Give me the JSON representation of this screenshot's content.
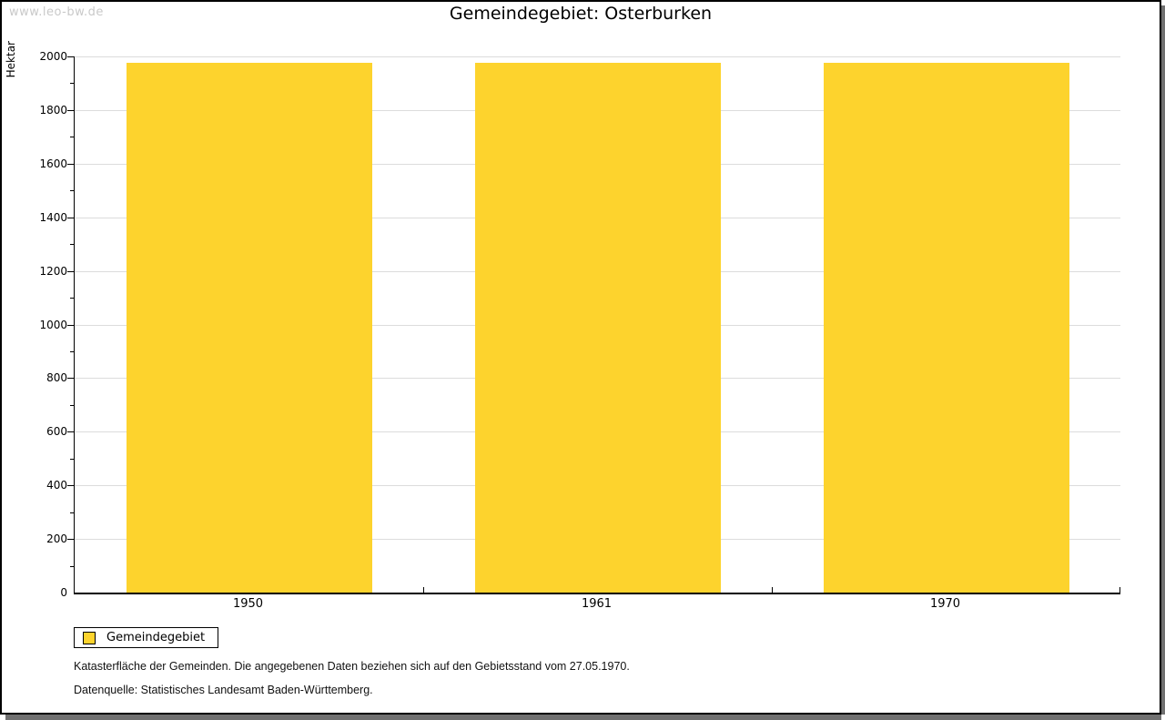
{
  "watermark": "www.leo-bw.de",
  "chart_data": {
    "type": "bar",
    "title": "Gemeindegebiet: Osterburken",
    "categories": [
      "1950",
      "1961",
      "1970"
    ],
    "series": [
      {
        "name": "Gemeindegebiet",
        "values": [
          1975,
          1975,
          1975
        ]
      }
    ],
    "xlabel": "",
    "ylabel": "Hektar",
    "ylim": [
      0,
      2000
    ],
    "yticks": [
      0,
      200,
      400,
      600,
      800,
      1000,
      1200,
      1400,
      1600,
      1800,
      2000
    ],
    "minor_tick_step": 100,
    "grid": true,
    "legend_position": "bottom-left",
    "unit": "Hektar"
  },
  "legend": {
    "swatch": "legend-color-gemeindegebiet"
  },
  "footnotes": [
    "Katasterfläche der Gemeinden. Die angegebenen Daten beziehen sich auf den Gebietsstand vom 27.05.1970.",
    "Datenquelle: Statistisches Landesamt Baden-Württemberg."
  ],
  "colors": {
    "bar_fill": "#FDD32D",
    "gridline": "#DCDCDC",
    "axis": "#000000",
    "watermark": "#C9C9C9",
    "frame_border": "#000000",
    "frame_shadow": "#707070",
    "background": "#FFFFFF"
  }
}
